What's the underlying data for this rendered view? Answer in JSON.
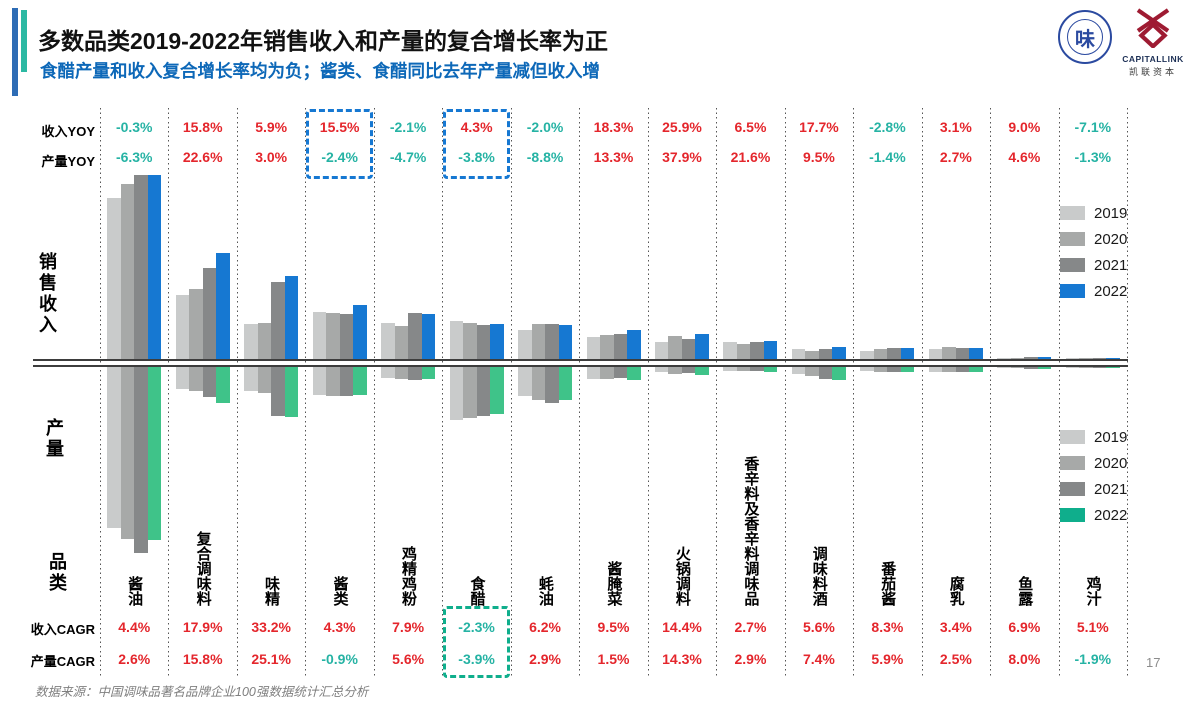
{
  "header": {
    "title": "多数品类2019-2022年销售收入和产量的复合增长率为正",
    "subtitle": "食醋产量和收入复合增长率均为负；酱类、食醋同比去年产量减但收入增"
  },
  "logos": {
    "association_symbol": "味",
    "capitallink_name": "CAPITALLINK",
    "capitallink_cn": "凯联资本"
  },
  "rows": {
    "revenue_yoy_label": "收入YOY",
    "production_yoy_label": "产量YOY",
    "revenue_axis_label": "销售收入",
    "production_axis_label": "产量",
    "category_label": "品类",
    "revenue_cagr_label": "收入CAGR",
    "production_cagr_label": "产量CAGR"
  },
  "chart_data": {
    "type": "bar",
    "categories": [
      "酱油",
      "复合调味料",
      "味精",
      "酱类",
      "鸡精鸡粉",
      "食醋",
      "蚝油",
      "酱腌菜",
      "火锅调料",
      "香辛料及香辛料调味品",
      "调味料酒",
      "番茄酱",
      "腐乳",
      "鱼露",
      "鸡汁"
    ],
    "years": [
      "2019",
      "2020",
      "2021",
      "2022"
    ],
    "revenue_yoy": [
      "-0.3%",
      "15.8%",
      "5.9%",
      "15.5%",
      "-2.1%",
      "4.3%",
      "-2.0%",
      "18.3%",
      "25.9%",
      "6.5%",
      "17.7%",
      "-2.8%",
      "3.1%",
      "9.0%",
      "-7.1%"
    ],
    "production_yoy": [
      "-6.3%",
      "22.6%",
      "3.0%",
      "-2.4%",
      "-4.7%",
      "-3.8%",
      "-8.8%",
      "13.3%",
      "37.9%",
      "21.6%",
      "9.5%",
      "-1.4%",
      "2.7%",
      "4.6%",
      "-1.3%"
    ],
    "revenue_cagr": [
      "4.4%",
      "17.9%",
      "33.2%",
      "4.3%",
      "7.9%",
      "-2.3%",
      "6.2%",
      "9.5%",
      "14.4%",
      "2.7%",
      "5.6%",
      "8.3%",
      "3.4%",
      "6.9%",
      "5.1%"
    ],
    "production_cagr": [
      "2.6%",
      "15.8%",
      "25.1%",
      "-0.9%",
      "5.6%",
      "-3.9%",
      "2.9%",
      "1.5%",
      "14.3%",
      "2.9%",
      "7.4%",
      "5.9%",
      "2.5%",
      "8.0%",
      "-1.9%"
    ],
    "value_units": "relative bar heights (px); source chart shows no numeric value axis",
    "revenue_bars": [
      [
        161,
        175,
        184,
        184
      ],
      [
        64,
        70,
        91,
        106
      ],
      [
        35,
        36,
        77,
        83
      ],
      [
        47,
        46,
        45,
        54
      ],
      [
        36,
        33,
        46,
        45
      ],
      [
        38,
        36,
        34,
        35
      ],
      [
        29,
        35,
        35,
        34
      ],
      [
        22,
        24,
        25,
        29
      ],
      [
        17,
        23,
        20,
        25
      ],
      [
        17,
        15,
        17,
        18
      ],
      [
        10,
        8,
        10,
        12
      ],
      [
        8,
        10,
        11,
        11
      ],
      [
        10,
        12,
        11,
        11
      ],
      [
        1.5,
        1.5,
        2,
        2.5
      ],
      [
        1,
        1,
        1,
        1
      ]
    ],
    "production_bars": [
      [
        161,
        172,
        186,
        173
      ],
      [
        22,
        24,
        30,
        36
      ],
      [
        24,
        26,
        49,
        50
      ],
      [
        28,
        29,
        29,
        28
      ],
      [
        11,
        12,
        13,
        12
      ],
      [
        53,
        51,
        49,
        47
      ],
      [
        29,
        33,
        36,
        33
      ],
      [
        12,
        12,
        11,
        13
      ],
      [
        5,
        7,
        5.5,
        7.5
      ],
      [
        4,
        4,
        4,
        5
      ],
      [
        7,
        9,
        12,
        13
      ],
      [
        4,
        5,
        5,
        5
      ],
      [
        5,
        5,
        5,
        5
      ],
      [
        1,
        1,
        1.5,
        1.5
      ],
      [
        1,
        1,
        1,
        1
      ]
    ],
    "highlight_top_categories": [
      "酱类",
      "食醋"
    ],
    "highlight_top_indices": [
      3,
      5
    ],
    "highlight_bottom_categories": [
      "食醋"
    ],
    "highlight_bottom_indices": [
      5
    ],
    "legend_position": "right-inside"
  },
  "legend_revenue": {
    "items": [
      {
        "label": "2019",
        "color": "#c9cbcb"
      },
      {
        "label": "2020",
        "color": "#a7a9a8"
      },
      {
        "label": "2021",
        "color": "#868889"
      },
      {
        "label": "2022",
        "color": "#1678d2"
      }
    ]
  },
  "legend_production": {
    "items": [
      {
        "label": "2019",
        "color": "#c9cbcb"
      },
      {
        "label": "2020",
        "color": "#a7a9a8"
      },
      {
        "label": "2021",
        "color": "#868889"
      },
      {
        "label": "2022",
        "color": "#0fae8c"
      }
    ]
  },
  "colors": {
    "positive": "#e4262c",
    "negative": "#26b3a4",
    "accent_blue": "#2d6cb5",
    "accent_teal": "#2cb9a3",
    "subtitle_blue": "#0d68b8",
    "bar_2022_revenue": "#1678d2",
    "bar_2022_production": "#3fc389",
    "revenue_year_colors": [
      "#c9cbcb",
      "#a7a9a8",
      "#868889",
      "#1678d2"
    ],
    "production_year_colors": [
      "#c9cbcb",
      "#a7a9a8",
      "#868889",
      "#3fc389"
    ],
    "highlight_box_blue": "#1678d2",
    "highlight_box_teal": "#0fae8c"
  },
  "footer": {
    "source": "数据来源：中国调味品著名品牌企业100强数据统计汇总分析",
    "page": "17"
  }
}
